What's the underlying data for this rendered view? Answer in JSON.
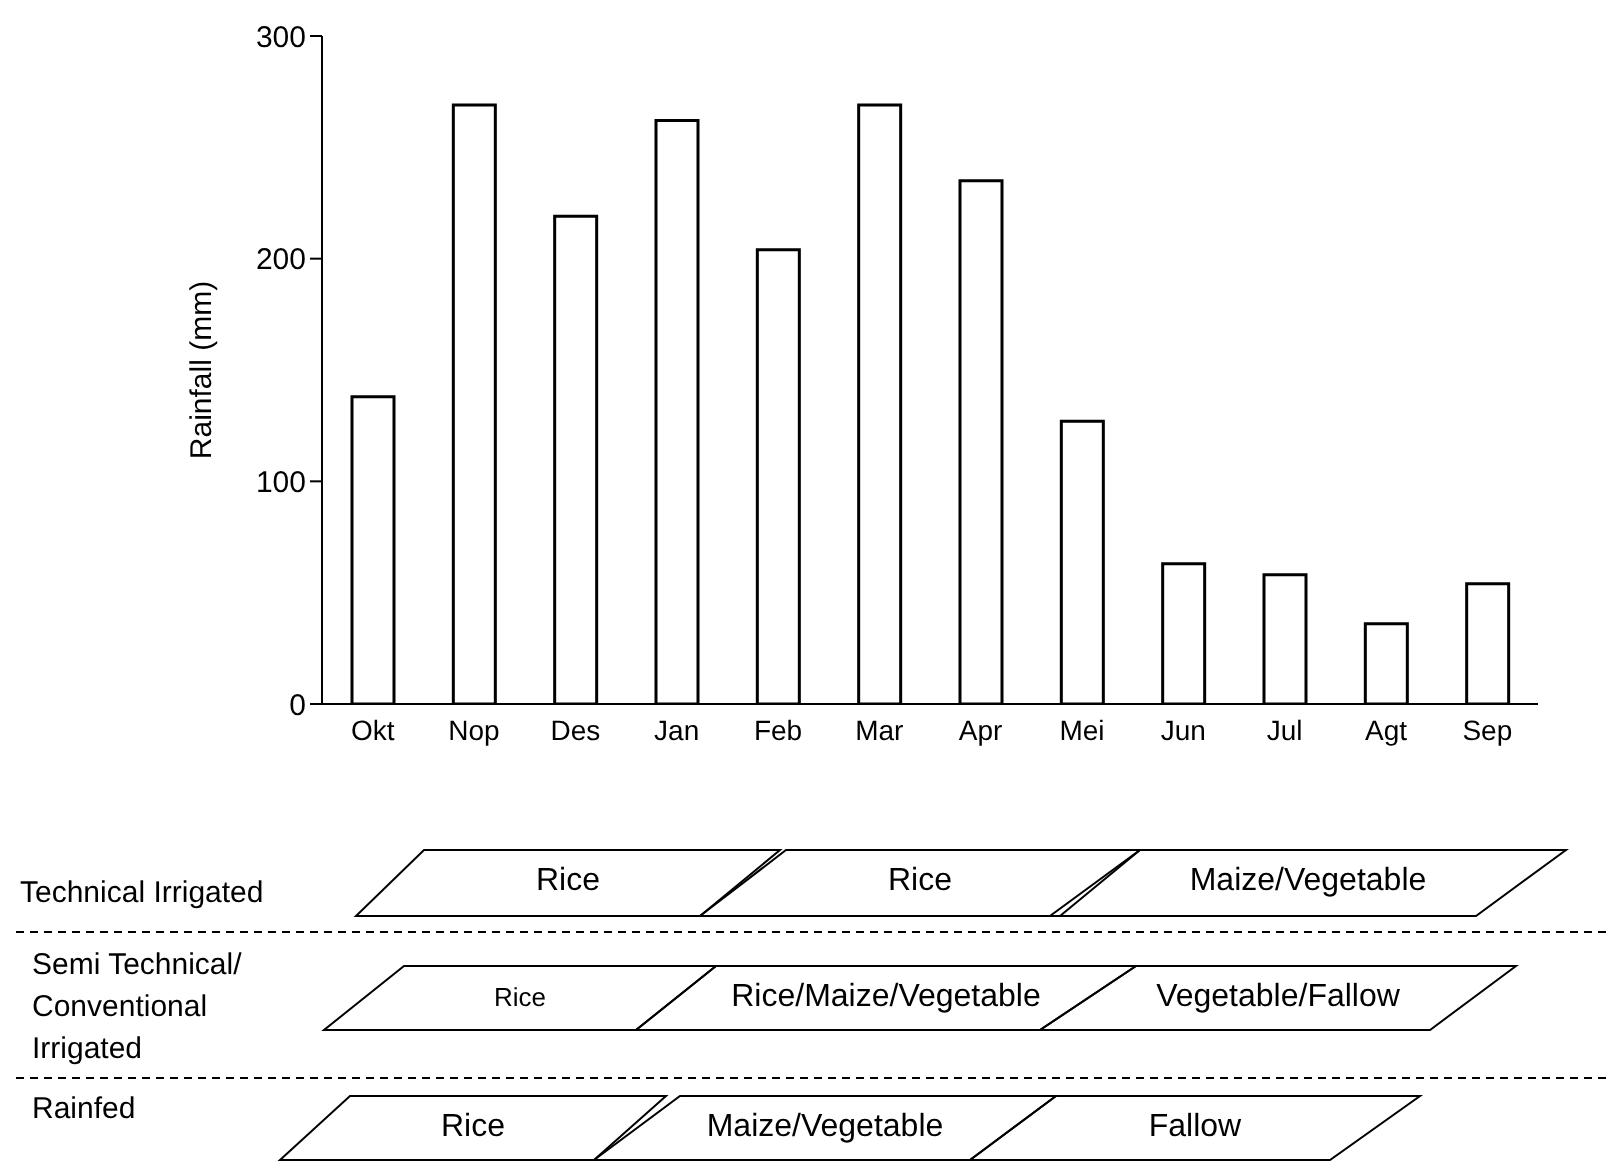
{
  "chart_data": [
    {
      "type": "bar",
      "ylabel": "Rainfall (mm)",
      "categories": [
        "Okt",
        "Nop",
        "Des",
        "Jan",
        "Feb",
        "Mar",
        "Apr",
        "Mei",
        "Jun",
        "Jul",
        "Agt",
        "Sep"
      ],
      "values": [
        138,
        269,
        219,
        262,
        204,
        269,
        235,
        127,
        63,
        58,
        36,
        54
      ],
      "color": "#000000",
      "ylim": [
        0,
        300
      ],
      "yticks": [
        0,
        100,
        200,
        300
      ]
    },
    {
      "type": "other",
      "annotations": [
        "Technical Irrigated",
        "Rice",
        "Rice",
        "Maize/Vegetable",
        "Semi Technical/ Conventional Irrigated",
        "Rice",
        "Rice/Maize/Vegetable",
        "Vegetable/Fallow",
        "Rainfed",
        "Rice",
        "Maize/Vegetable",
        "Fallow"
      ]
    }
  ]
}
